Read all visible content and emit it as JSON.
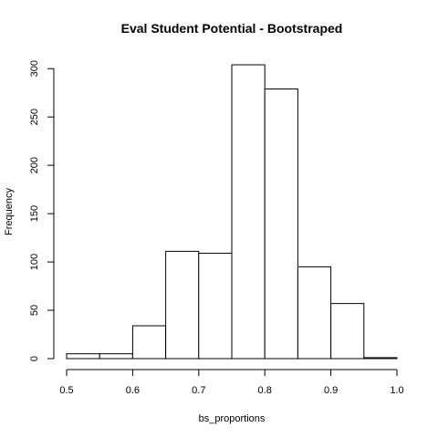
{
  "chart_data": {
    "type": "bar",
    "title": "Eval Student Potential - Bootstraped",
    "xlabel": "bs_proportions",
    "ylabel": "Frequency",
    "bins": [
      {
        "from": 0.5,
        "to": 0.55,
        "count": 5
      },
      {
        "from": 0.55,
        "to": 0.6,
        "count": 5
      },
      {
        "from": 0.6,
        "to": 0.65,
        "count": 34
      },
      {
        "from": 0.65,
        "to": 0.7,
        "count": 111
      },
      {
        "from": 0.7,
        "to": 0.75,
        "count": 109
      },
      {
        "from": 0.75,
        "to": 0.8,
        "count": 304
      },
      {
        "from": 0.8,
        "to": 0.85,
        "count": 279
      },
      {
        "from": 0.85,
        "to": 0.9,
        "count": 95
      },
      {
        "from": 0.9,
        "to": 0.95,
        "count": 57
      },
      {
        "from": 0.95,
        "to": 1.0,
        "count": 1
      }
    ],
    "xlim": [
      0.5,
      1.0
    ],
    "ylim": [
      0,
      304
    ],
    "x_ticks": [
      {
        "value": 0.5,
        "label": "0.5"
      },
      {
        "value": 0.6,
        "label": "0.6"
      },
      {
        "value": 0.7,
        "label": "0.7"
      },
      {
        "value": 0.8,
        "label": "0.8"
      },
      {
        "value": 0.9,
        "label": "0.9"
      },
      {
        "value": 1.0,
        "label": "1.0"
      }
    ],
    "y_ticks": [
      {
        "value": 0,
        "label": "0"
      },
      {
        "value": 50,
        "label": "50"
      },
      {
        "value": 100,
        "label": "100"
      },
      {
        "value": 150,
        "label": "150"
      },
      {
        "value": 200,
        "label": "200"
      },
      {
        "value": 250,
        "label": "250"
      },
      {
        "value": 300,
        "label": "300"
      }
    ],
    "grid": false,
    "colors": {
      "bar_fill": "#ffffff",
      "bar_stroke": "#000000"
    }
  }
}
